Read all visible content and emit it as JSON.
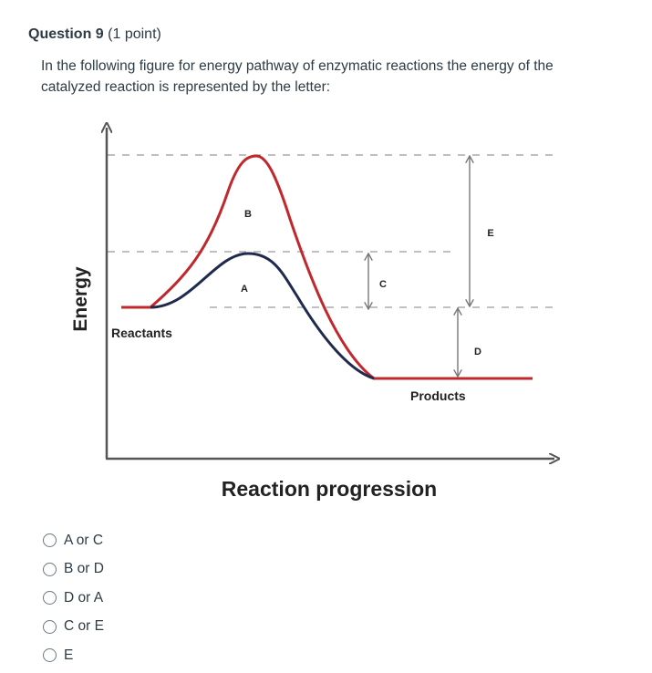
{
  "question": {
    "title": "Question 9",
    "points": "(1 point)",
    "text": "In the following figure for energy pathway of enzymatic reactions the energy of the catalyzed reaction is represented by the letter:"
  },
  "figure": {
    "y_axis_label": "Energy",
    "x_axis_label": "Reaction progression",
    "reactants_label": "Reactants",
    "products_label": "Products",
    "letters": {
      "a": "A",
      "b": "B",
      "c": "C",
      "d": "D",
      "e": "E"
    },
    "colors": {
      "uncatalyzed": "#c0282d",
      "catalyzed": "#1f2a4d",
      "axis": "#555555",
      "dashes": "#9a9a9a"
    }
  },
  "options": [
    {
      "label": "A or C"
    },
    {
      "label": "B or D"
    },
    {
      "label": "D or A"
    },
    {
      "label": "C or E"
    },
    {
      "label": "E"
    }
  ]
}
